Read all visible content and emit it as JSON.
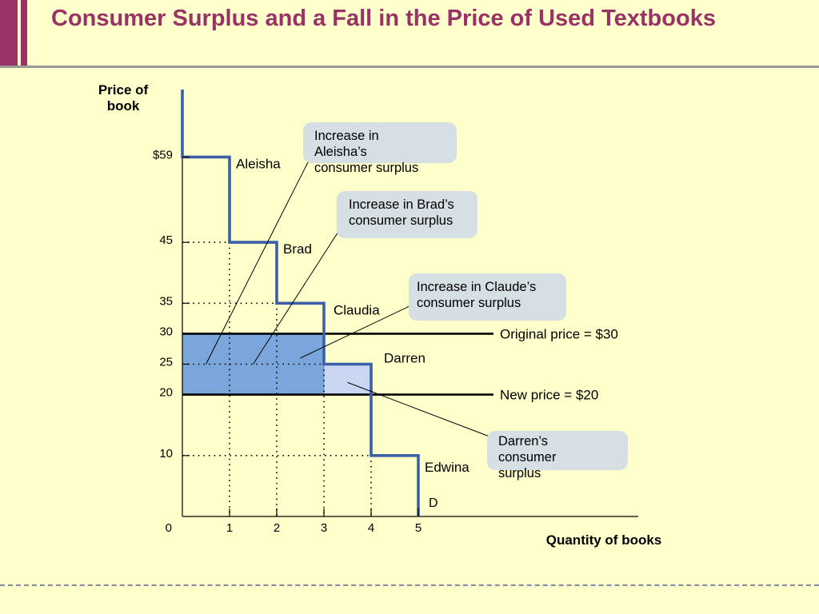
{
  "slide": {
    "title": "Consumer Surplus and a Fall in the Price of Used Textbooks"
  },
  "colors": {
    "title": "#993366",
    "demand_line": "#3b5fa8",
    "surplus_original": "#7aa6dc",
    "surplus_new": "#c9d6f2",
    "callout_bg": "#d6dfe3",
    "background": "#ffffcc"
  },
  "chart_data": {
    "type": "line",
    "ylabel": "Price of book",
    "xlabel": "Quantity of books",
    "origin_label": "0",
    "xlim": [
      0,
      5
    ],
    "ylim": [
      0,
      65
    ],
    "x_ticks": [
      {
        "value": 1,
        "label": "1"
      },
      {
        "value": 2,
        "label": "2"
      },
      {
        "value": 3,
        "label": "3"
      },
      {
        "value": 4,
        "label": "4"
      },
      {
        "value": 5,
        "label": "5"
      }
    ],
    "y_ticks": [
      {
        "value": 59,
        "label": "$59"
      },
      {
        "value": 45,
        "label": "45"
      },
      {
        "value": 35,
        "label": "35"
      },
      {
        "value": 30,
        "label": "30"
      },
      {
        "value": 25,
        "label": "25"
      },
      {
        "value": 20,
        "label": "20"
      },
      {
        "value": 10,
        "label": "10"
      }
    ],
    "demand": {
      "label": "D",
      "steps": [
        {
          "name": "Aleisha",
          "x_start": 0,
          "x_end": 1,
          "price": 59
        },
        {
          "name": "Brad",
          "x_start": 1,
          "x_end": 2,
          "price": 45
        },
        {
          "name": "Claudia",
          "x_start": 2,
          "x_end": 3,
          "price": 35
        },
        {
          "name": "Darren",
          "x_start": 3,
          "x_end": 4,
          "price": 25
        },
        {
          "name": "Edwina",
          "x_start": 4,
          "x_end": 5,
          "price": 10
        }
      ]
    },
    "price_lines": [
      {
        "price": 30,
        "label": "Original price = $30"
      },
      {
        "price": 20,
        "label": "New price = $20"
      }
    ],
    "shaded_areas": [
      {
        "x_start": 0,
        "x_end": 3,
        "y_low": 20,
        "y_high": 30,
        "kind": "original"
      },
      {
        "x_start": 3,
        "x_end": 4,
        "y_low": 20,
        "y_high": 25,
        "kind": "new"
      }
    ],
    "annotations": [
      {
        "text": [
          "Increase in",
          "Aleisha’s",
          "consumer surplus"
        ],
        "target": [
          0.5,
          25
        ],
        "position": "upper"
      },
      {
        "text": [
          "Increase in Brad’s",
          "consumer surplus"
        ],
        "target": [
          1.5,
          25
        ],
        "position": "upper-right"
      },
      {
        "text": [
          "Increase in Claude’s",
          "consumer surplus"
        ],
        "target": [
          2.5,
          26
        ],
        "position": "right"
      },
      {
        "text": [
          "Darren’s",
          "consumer",
          "surplus"
        ],
        "target": [
          3.5,
          22
        ],
        "position": "lower-right"
      }
    ]
  }
}
